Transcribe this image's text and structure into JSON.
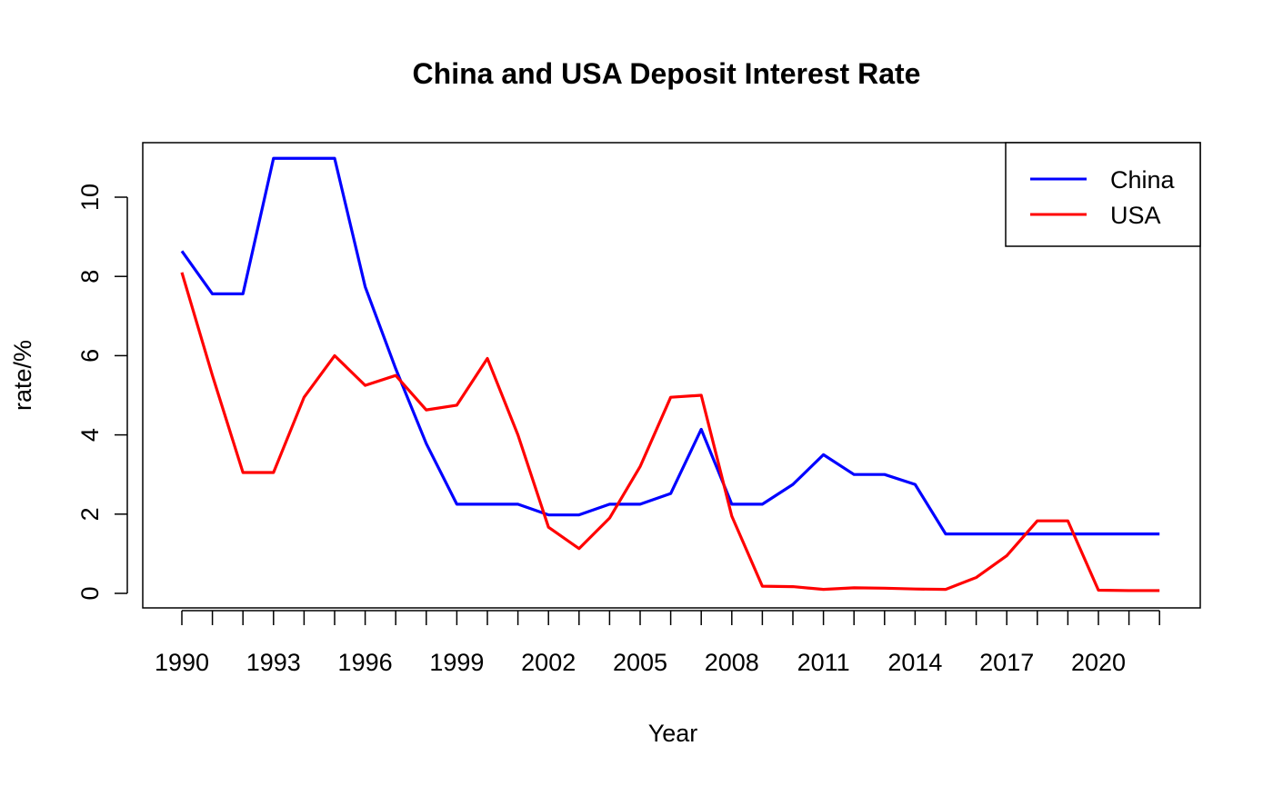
{
  "chart_data": {
    "type": "line",
    "title": "China and USA Deposit Interest Rate",
    "xlabel": "Year",
    "ylabel": "rate/%",
    "x": [
      1990,
      1991,
      1992,
      1993,
      1994,
      1995,
      1996,
      1997,
      1998,
      1999,
      2000,
      2001,
      2002,
      2003,
      2004,
      2005,
      2006,
      2007,
      2008,
      2009,
      2010,
      2011,
      2012,
      2013,
      2014,
      2015,
      2016,
      2017,
      2018,
      2019,
      2020,
      2021,
      2022
    ],
    "x_tick_labels": [
      "1990",
      "1993",
      "1996",
      "1999",
      "2002",
      "2005",
      "2008",
      "2011",
      "2014",
      "2017",
      "2020"
    ],
    "y_tick_labels": [
      "0",
      "2",
      "4",
      "6",
      "8",
      "10"
    ],
    "xlim": [
      1990,
      2022
    ],
    "ylim": [
      0,
      10.98
    ],
    "grid": false,
    "legend_position": "top-right",
    "series": [
      {
        "name": "China",
        "color": "#0000ff",
        "values": [
          8.64,
          7.56,
          7.56,
          10.98,
          10.98,
          10.98,
          7.74,
          5.67,
          3.78,
          2.25,
          2.25,
          2.25,
          1.98,
          1.98,
          2.25,
          2.25,
          2.52,
          4.14,
          2.25,
          2.25,
          2.75,
          3.5,
          3.0,
          3.0,
          2.75,
          1.5,
          1.5,
          1.5,
          1.5,
          1.5,
          1.5,
          1.5,
          1.5
        ]
      },
      {
        "name": "USA",
        "color": "#ff0000",
        "values": [
          8.1,
          5.5,
          3.05,
          3.05,
          4.95,
          6.0,
          5.25,
          5.5,
          4.63,
          4.75,
          5.93,
          4.0,
          1.67,
          1.13,
          1.9,
          3.2,
          4.95,
          5.0,
          1.95,
          0.18,
          0.17,
          0.1,
          0.14,
          0.13,
          0.11,
          0.1,
          0.4,
          0.95,
          1.83,
          1.83,
          0.08,
          0.07,
          0.07
        ]
      }
    ]
  }
}
